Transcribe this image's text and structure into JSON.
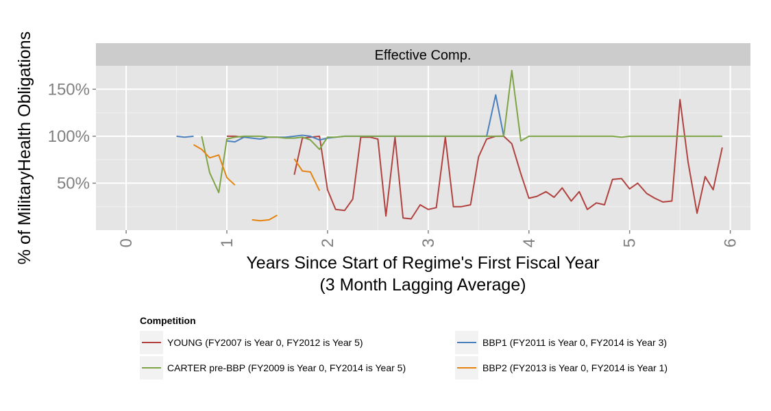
{
  "chart_data": {
    "type": "line",
    "title": "",
    "facet_label": "Effective Comp.",
    "xlabel_line1": "Years Since Start of Regime's First Fiscal Year",
    "xlabel_line2": "(3 Month Lagging Average)",
    "ylabel": "% of MilitaryHealth Obligations",
    "xlim": [
      -0.3,
      6.2
    ],
    "ylim": [
      0.0,
      1.75
    ],
    "x_ticks": [
      0,
      1,
      2,
      3,
      4,
      5,
      6
    ],
    "x_tick_labels": [
      "0",
      "1",
      "2",
      "3",
      "4",
      "5",
      "6"
    ],
    "y_ticks": [
      0.5,
      1.0,
      1.5
    ],
    "y_tick_labels": [
      "50%",
      "100%",
      "150%"
    ],
    "grid": true,
    "legend_title": "Competition",
    "legend_position": "bottom",
    "series": [
      {
        "name": "YOUNG (FY2007 is Year 0, FY2012 is Year 5)",
        "color": "#B0413E",
        "segments": [
          [
            [
              1.0,
              1.0
            ],
            [
              1.08,
              1.0
            ],
            [
              1.17,
              0.99
            ]
          ],
          [
            [
              1.67,
              0.59
            ],
            [
              1.75,
              0.98
            ],
            [
              1.83,
              0.99
            ],
            [
              1.92,
              1.0
            ],
            [
              2.0,
              0.43
            ],
            [
              2.08,
              0.22
            ],
            [
              2.17,
              0.21
            ],
            [
              2.25,
              0.33
            ],
            [
              2.33,
              0.99
            ],
            [
              2.42,
              0.99
            ],
            [
              2.5,
              0.97
            ],
            [
              2.58,
              0.15
            ],
            [
              2.67,
              0.99
            ],
            [
              2.75,
              0.13
            ],
            [
              2.83,
              0.12
            ],
            [
              2.92,
              0.27
            ],
            [
              3.0,
              0.22
            ],
            [
              3.08,
              0.24
            ],
            [
              3.17,
              0.99
            ],
            [
              3.25,
              0.25
            ],
            [
              3.33,
              0.25
            ],
            [
              3.42,
              0.27
            ],
            [
              3.5,
              0.78
            ],
            [
              3.58,
              0.97
            ],
            [
              3.67,
              1.0
            ],
            [
              3.75,
              1.0
            ],
            [
              3.83,
              0.92
            ],
            [
              3.92,
              0.6
            ],
            [
              4.0,
              0.34
            ],
            [
              4.08,
              0.36
            ],
            [
              4.17,
              0.41
            ],
            [
              4.25,
              0.35
            ],
            [
              4.33,
              0.45
            ],
            [
              4.42,
              0.31
            ],
            [
              4.5,
              0.41
            ],
            [
              4.58,
              0.22
            ],
            [
              4.67,
              0.29
            ],
            [
              4.75,
              0.27
            ],
            [
              4.83,
              0.54
            ],
            [
              4.92,
              0.55
            ],
            [
              5.0,
              0.44
            ],
            [
              5.08,
              0.5
            ],
            [
              5.17,
              0.39
            ],
            [
              5.25,
              0.34
            ],
            [
              5.33,
              0.3
            ],
            [
              5.42,
              0.31
            ],
            [
              5.5,
              1.39
            ],
            [
              5.58,
              0.73
            ],
            [
              5.67,
              0.18
            ],
            [
              5.75,
              0.57
            ],
            [
              5.83,
              0.43
            ],
            [
              5.92,
              0.88
            ]
          ]
        ]
      },
      {
        "name": "BBP1 (FY2011 is Year 0, FY2014 is Year 3)",
        "color": "#4A7FBE",
        "segments": [
          [
            [
              0.5,
              1.0
            ],
            [
              0.58,
              0.99
            ],
            [
              0.67,
              1.0
            ]
          ],
          [
            [
              1.0,
              0.95
            ],
            [
              1.08,
              0.94
            ],
            [
              1.17,
              0.99
            ],
            [
              1.25,
              0.98
            ],
            [
              1.33,
              0.97
            ],
            [
              1.42,
              0.99
            ],
            [
              1.5,
              0.99
            ],
            [
              1.58,
              0.99
            ],
            [
              1.67,
              1.0
            ],
            [
              1.75,
              1.01
            ],
            [
              1.83,
              1.0
            ],
            [
              1.92,
              0.96
            ],
            [
              2.0,
              0.98
            ],
            [
              2.08,
              0.99
            ],
            [
              2.17,
              1.0
            ],
            [
              2.25,
              1.0
            ],
            [
              2.33,
              1.0
            ],
            [
              2.42,
              1.0
            ],
            [
              2.5,
              1.0
            ],
            [
              2.58,
              1.0
            ],
            [
              2.67,
              1.0
            ],
            [
              2.75,
              1.0
            ],
            [
              2.83,
              1.0
            ],
            [
              2.92,
              1.0
            ],
            [
              3.0,
              1.0
            ],
            [
              3.08,
              1.0
            ],
            [
              3.17,
              1.0
            ],
            [
              3.25,
              1.0
            ],
            [
              3.33,
              1.0
            ],
            [
              3.42,
              1.0
            ],
            [
              3.5,
              1.0
            ],
            [
              3.58,
              1.0
            ],
            [
              3.67,
              1.44
            ],
            [
              3.75,
              1.0
            ]
          ]
        ]
      },
      {
        "name": "CARTER pre-BBP (FY2009 is Year 0, FY2014 is Year 5)",
        "color": "#7DA444",
        "segments": [
          [
            [
              0.75,
              1.0
            ],
            [
              0.83,
              0.61
            ],
            [
              0.92,
              0.4
            ],
            [
              1.0,
              0.97
            ],
            [
              1.08,
              0.99
            ],
            [
              1.17,
              1.0
            ],
            [
              1.25,
              1.0
            ],
            [
              1.33,
              1.0
            ],
            [
              1.42,
              0.99
            ],
            [
              1.5,
              0.99
            ],
            [
              1.58,
              0.98
            ],
            [
              1.67,
              0.98
            ],
            [
              1.75,
              0.99
            ],
            [
              1.83,
              0.96
            ],
            [
              1.92,
              0.86
            ],
            [
              2.0,
              0.99
            ],
            [
              2.08,
              0.99
            ],
            [
              2.17,
              1.0
            ],
            [
              2.25,
              1.0
            ],
            [
              2.33,
              1.0
            ],
            [
              2.42,
              1.0
            ],
            [
              2.5,
              1.0
            ],
            [
              2.58,
              1.0
            ],
            [
              2.67,
              1.0
            ],
            [
              2.75,
              1.0
            ],
            [
              2.83,
              1.0
            ],
            [
              2.92,
              1.0
            ],
            [
              3.0,
              1.0
            ],
            [
              3.08,
              1.0
            ],
            [
              3.17,
              1.0
            ],
            [
              3.25,
              1.0
            ],
            [
              3.33,
              1.0
            ],
            [
              3.42,
              1.0
            ],
            [
              3.5,
              1.0
            ],
            [
              3.58,
              1.0
            ],
            [
              3.67,
              1.0
            ],
            [
              3.75,
              1.0
            ],
            [
              3.83,
              1.7
            ],
            [
              3.92,
              0.95
            ],
            [
              4.0,
              1.0
            ],
            [
              4.08,
              1.0
            ],
            [
              4.17,
              1.0
            ],
            [
              4.25,
              1.0
            ],
            [
              4.33,
              1.0
            ],
            [
              4.42,
              1.0
            ],
            [
              4.5,
              1.0
            ],
            [
              4.58,
              1.0
            ],
            [
              4.67,
              1.0
            ],
            [
              4.75,
              1.0
            ],
            [
              4.83,
              1.0
            ],
            [
              4.92,
              0.99
            ],
            [
              5.0,
              1.0
            ],
            [
              5.08,
              1.0
            ],
            [
              5.17,
              1.0
            ],
            [
              5.25,
              1.0
            ],
            [
              5.33,
              1.0
            ],
            [
              5.42,
              1.0
            ],
            [
              5.5,
              1.0
            ],
            [
              5.58,
              1.0
            ],
            [
              5.67,
              1.0
            ],
            [
              5.75,
              1.0
            ],
            [
              5.83,
              1.0
            ],
            [
              5.92,
              1.0
            ]
          ]
        ]
      },
      {
        "name": "BBP2 (FY2013 is Year 0, FY2014 is Year 1)",
        "color": "#E5830E",
        "segments": [
          [
            [
              0.67,
              0.91
            ],
            [
              0.75,
              0.86
            ],
            [
              0.83,
              0.77
            ],
            [
              0.92,
              0.8
            ],
            [
              1.0,
              0.56
            ],
            [
              1.08,
              0.48
            ]
          ],
          [
            [
              1.25,
              0.11
            ],
            [
              1.33,
              0.1
            ],
            [
              1.42,
              0.11
            ],
            [
              1.5,
              0.16
            ]
          ],
          [
            [
              1.67,
              0.76
            ],
            [
              1.75,
              0.63
            ],
            [
              1.83,
              0.62
            ],
            [
              1.92,
              0.42
            ]
          ]
        ]
      }
    ]
  }
}
